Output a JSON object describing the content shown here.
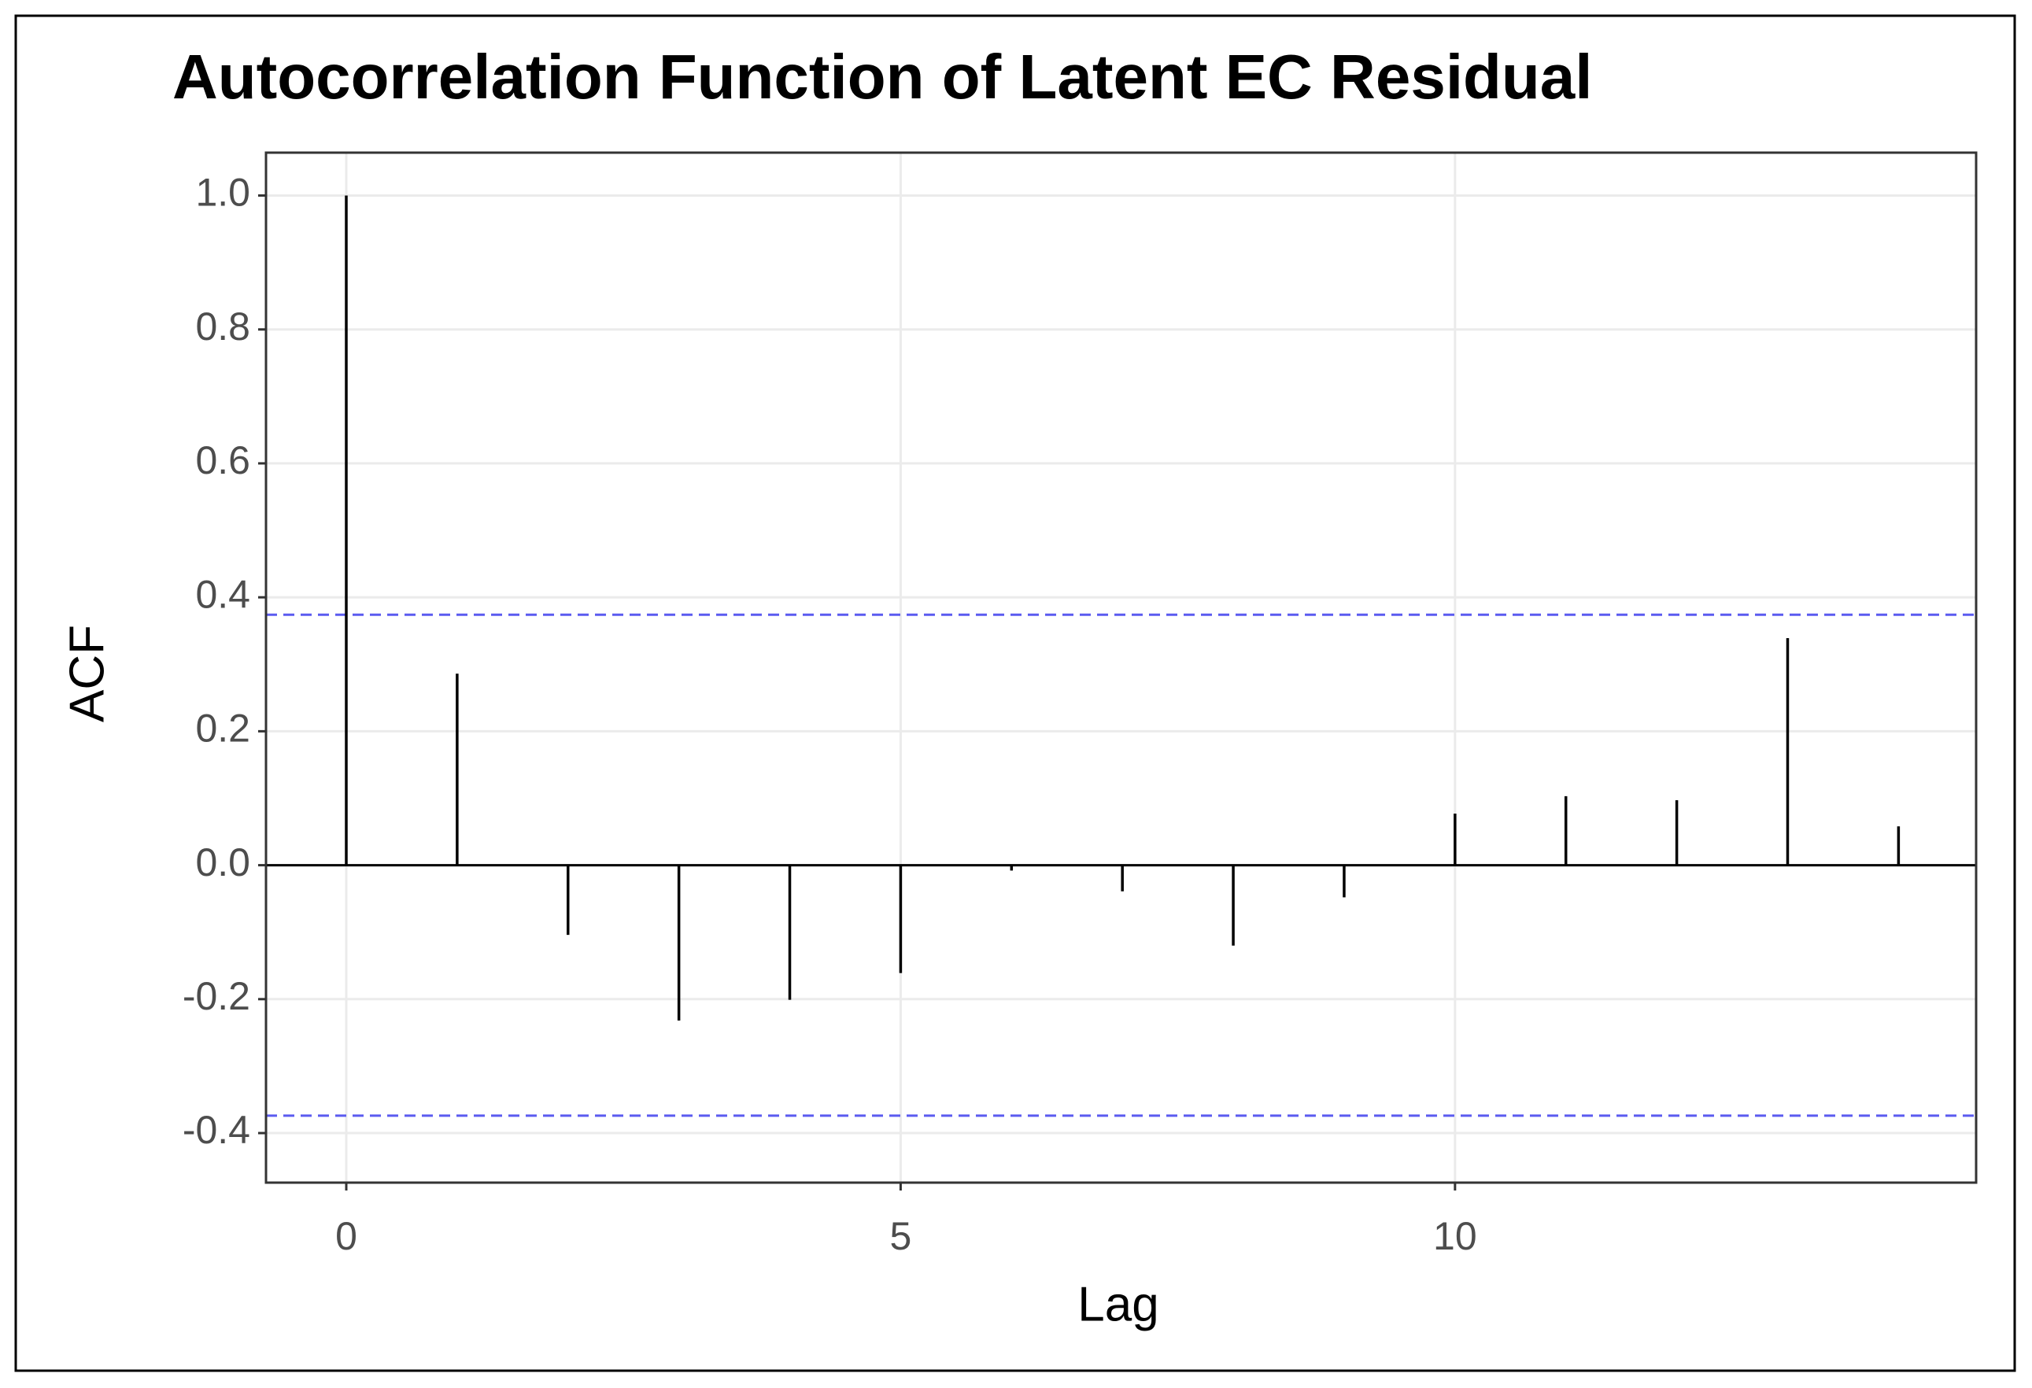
{
  "chart_data": {
    "type": "stem",
    "title": "Autocorrelation Function of Latent EC Residual",
    "x_label": "Lag",
    "y_label": "ACF",
    "x": [
      0,
      1,
      2,
      3,
      4,
      5,
      6,
      7,
      8,
      9,
      10,
      11,
      12,
      13,
      14
    ],
    "values": [
      1.0,
      0.286,
      -0.104,
      -0.232,
      -0.201,
      -0.161,
      -0.008,
      -0.039,
      -0.12,
      -0.048,
      0.077,
      0.103,
      0.097,
      0.339,
      0.058
    ],
    "color": "#000000",
    "confidence_bounds": [
      0.374,
      -0.374
    ],
    "confidence_color": "#5b5bf0",
    "xlim": [
      -0.724,
      14.7
    ],
    "xticks": [
      0,
      5,
      10
    ],
    "ylim": [
      -0.474,
      1.064
    ],
    "yticks": [
      -0.4,
      -0.2,
      {
        "value": 0,
        "label": "0.0"
      },
      0.2,
      0.4,
      0.6,
      0.8,
      {
        "value": 1,
        "label": "1.0"
      }
    ],
    "grid": true
  }
}
